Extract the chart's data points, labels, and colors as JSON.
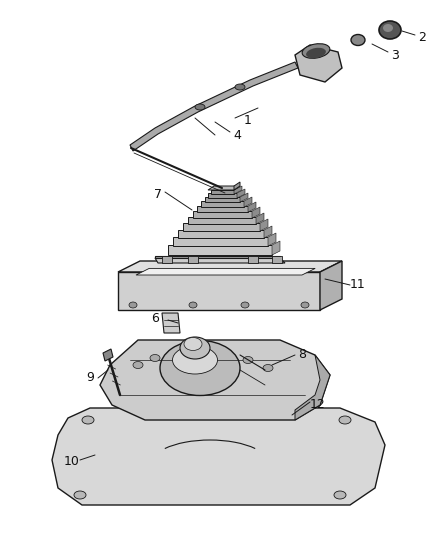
{
  "bg_color": "#ffffff",
  "fig_width": 4.39,
  "fig_height": 5.33,
  "dpi": 100,
  "line_color": "#1a1a1a",
  "light_gray": "#cccccc",
  "mid_gray": "#aaaaaa",
  "dark_gray": "#777777",
  "white": "#f0f0f0"
}
